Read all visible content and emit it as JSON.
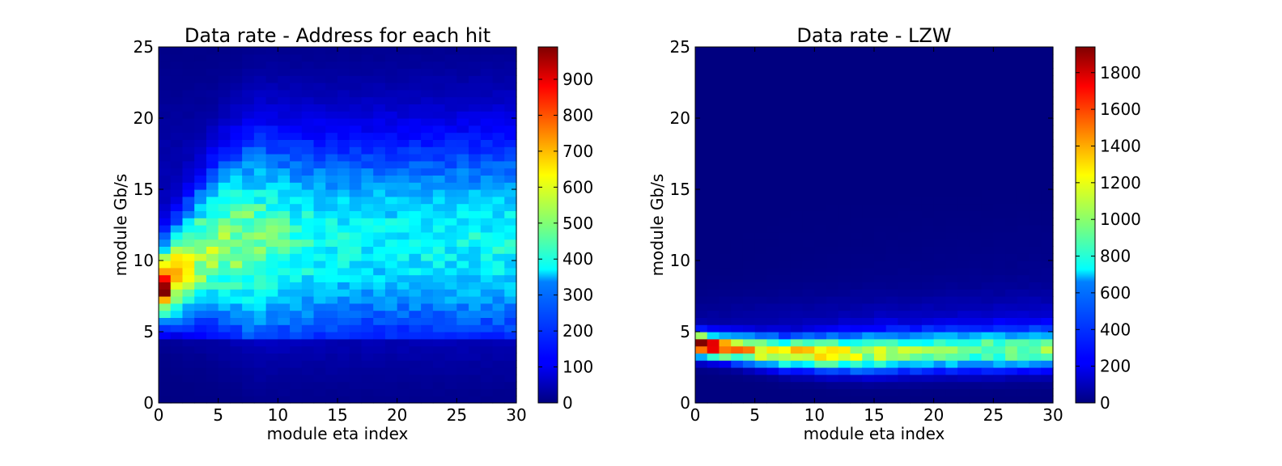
{
  "chart_data": [
    {
      "type": "heatmap",
      "title": "Data rate - Address for each hit",
      "xlabel": "module eta index",
      "ylabel": "module Gb/s",
      "xlim": [
        0,
        30
      ],
      "ylim": [
        0,
        25
      ],
      "x_ticks": [
        "0",
        "5",
        "10",
        "15",
        "20",
        "25",
        "30"
      ],
      "y_ticks": [
        "0",
        "5",
        "10",
        "15",
        "20",
        "25"
      ],
      "bins": {
        "x": 30,
        "y": 50
      },
      "colormap": "jet",
      "colorbar": {
        "min": 0,
        "max": 990,
        "ticks": [
          "0",
          "100",
          "200",
          "300",
          "400",
          "500",
          "600",
          "700",
          "800",
          "900"
        ]
      },
      "distribution": {
        "description_values": "peak near eta 0-1 at 7-9 Gb/s (~990); band centre ~10-11 Gb/s spreading with eta; secondary ridge ~11 Gb/s at eta 2-10 (~600)",
        "peak": {
          "x": 0.5,
          "y": 8.0,
          "value": 990
        },
        "ridge": [
          {
            "x": 0.5,
            "y": 8.0,
            "value": 990
          },
          {
            "x": 2,
            "y": 9.5,
            "value": 760
          },
          {
            "x": 4,
            "y": 10.5,
            "value": 600
          },
          {
            "x": 8,
            "y": 11.0,
            "value": 480
          },
          {
            "x": 12,
            "y": 11.0,
            "value": 420
          },
          {
            "x": 16,
            "y": 11.0,
            "value": 360
          },
          {
            "x": 20,
            "y": 11.0,
            "value": 320
          },
          {
            "x": 25,
            "y": 11.0,
            "value": 280
          },
          {
            "x": 30,
            "y": 11.0,
            "value": 250
          }
        ]
      }
    },
    {
      "type": "heatmap",
      "title": "Data rate - LZW",
      "xlabel": "module eta index",
      "ylabel": "module Gb/s",
      "xlim": [
        0,
        30
      ],
      "ylim": [
        0,
        25
      ],
      "x_ticks": [
        "0",
        "5",
        "10",
        "15",
        "20",
        "25",
        "30"
      ],
      "y_ticks": [
        "0",
        "5",
        "10",
        "15",
        "20",
        "25"
      ],
      "bins": {
        "x": 30,
        "y": 50
      },
      "colormap": "jet",
      "colorbar": {
        "min": 0,
        "max": 1940,
        "ticks": [
          "0",
          "200",
          "400",
          "600",
          "800",
          "1000",
          "1200",
          "1400",
          "1600",
          "1800"
        ]
      },
      "distribution": {
        "description_values": "narrow band ~3.5-4.5 Gb/s; peak at eta 0-2, ~4.2 Gb/s (~1940); decreasing with eta to ~900 at eta 30",
        "peak": {
          "x": 0.5,
          "y": 4.25,
          "value": 1940
        },
        "ridge": [
          {
            "x": 0.5,
            "y": 4.25,
            "value": 1940
          },
          {
            "x": 3,
            "y": 3.9,
            "value": 1650
          },
          {
            "x": 6,
            "y": 3.6,
            "value": 1450
          },
          {
            "x": 10,
            "y": 3.5,
            "value": 1300
          },
          {
            "x": 15,
            "y": 3.6,
            "value": 1150
          },
          {
            "x": 20,
            "y": 3.8,
            "value": 1050
          },
          {
            "x": 25,
            "y": 3.9,
            "value": 950
          },
          {
            "x": 30,
            "y": 4.0,
            "value": 880
          }
        ]
      }
    }
  ]
}
